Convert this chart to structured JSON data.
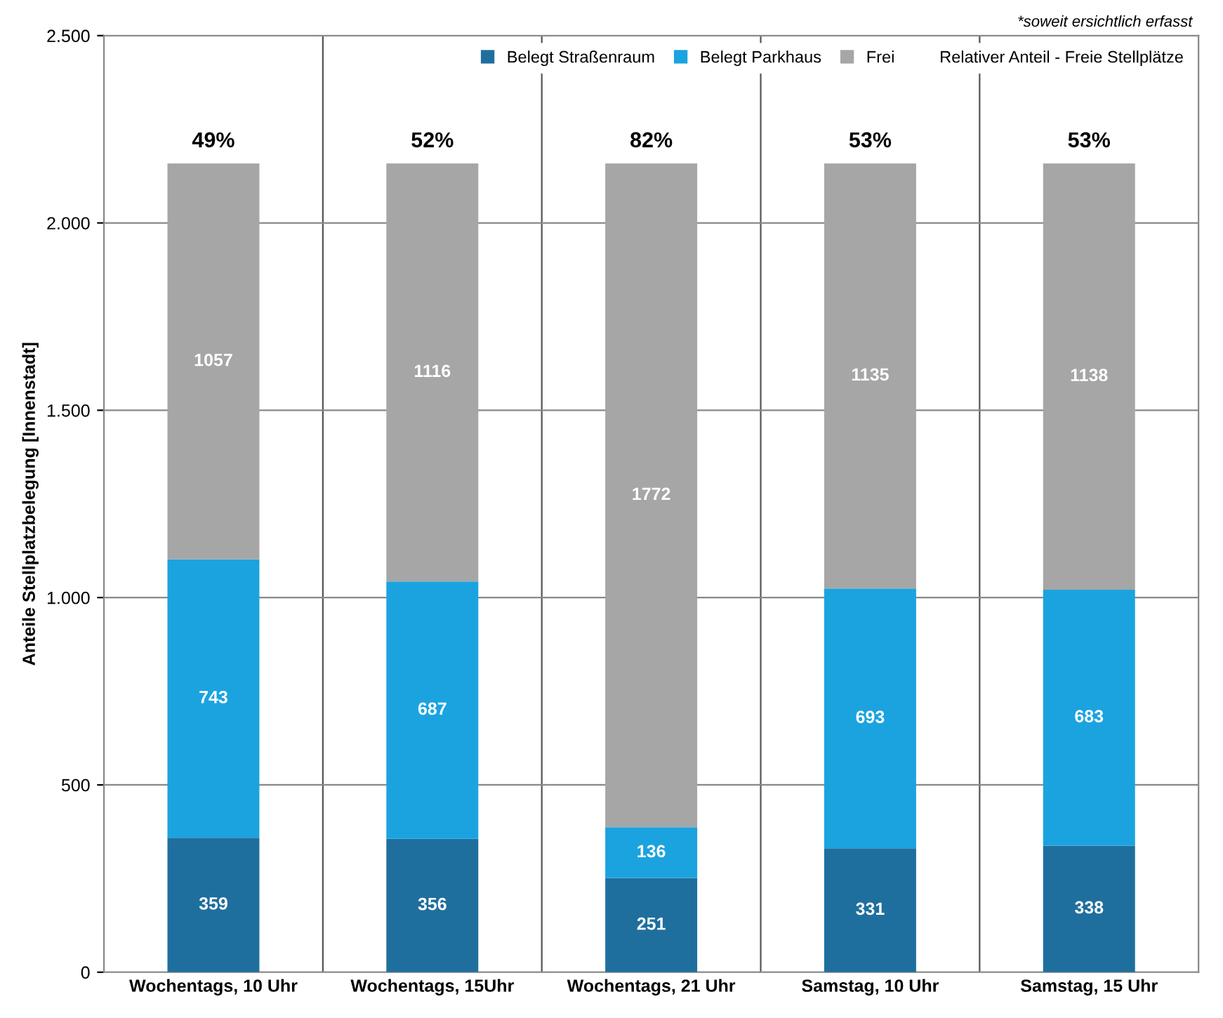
{
  "chart_data": {
    "type": "bar",
    "stacked": true,
    "ylabel": "Anteile Stellplatzbelegung [Innenstadt]",
    "categories": [
      "Wochentags, 10 Uhr",
      "Wochentags, 15Uhr",
      "Wochentags, 21 Uhr",
      "Samstag, 10 Uhr",
      "Samstag, 15 Uhr"
    ],
    "series": [
      {
        "name": "Belegt Straßenraum",
        "color": "#1f6f9e",
        "values": [
          359,
          356,
          251,
          331,
          338
        ]
      },
      {
        "name": "Belegt Parkhaus",
        "color": "#1ba3e0",
        "values": [
          743,
          687,
          136,
          693,
          683
        ]
      },
      {
        "name": "Frei",
        "color": "#a6a6a6",
        "values": [
          1057,
          1116,
          1772,
          1135,
          1138
        ]
      }
    ],
    "data_labels": true,
    "annotations": [
      "Relativer Anteil - Freie Stellplätze",
      "*soweit ersichtlich erfasst",
      {
        "text": "49%",
        "x": "Wochentags, 10 Uhr",
        "y": 2159
      },
      {
        "text": "52%",
        "x": "Wochentags, 15Uhr",
        "y": 2159
      },
      {
        "text": "82%",
        "x": "Wochentags, 21 Uhr",
        "y": 2159
      },
      {
        "text": "53%",
        "x": "Samstag, 10 Uhr",
        "y": 2159
      },
      {
        "text": "53%",
        "x": "Samstag, 15 Uhr",
        "y": 2159
      }
    ],
    "ylim": [
      0,
      2500
    ],
    "yticks": [
      0,
      500,
      {
        "value": 1000,
        "label": "1.000"
      },
      {
        "value": 1500,
        "label": "1.500"
      },
      {
        "value": 2000,
        "label": "2.000"
      },
      {
        "value": 2500,
        "label": "2.500"
      }
    ],
    "grid": true,
    "legend": "top right"
  }
}
